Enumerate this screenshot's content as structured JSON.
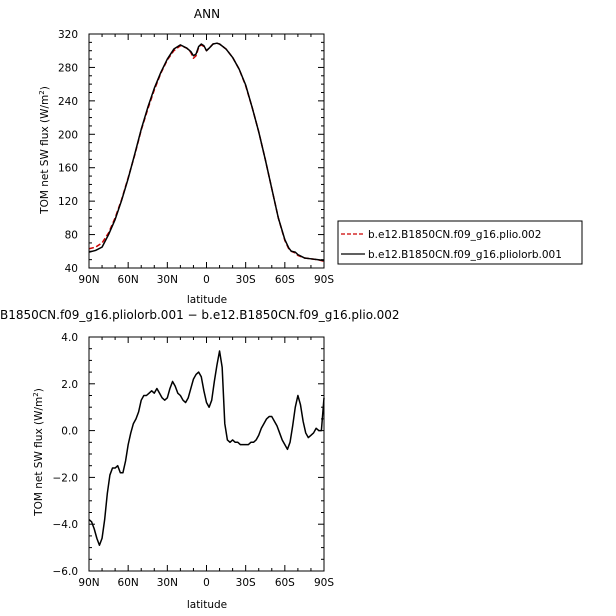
{
  "chart_data": [
    {
      "type": "line",
      "title": "ANN",
      "xlabel": "latitude",
      "ylabel": "TOM net SW flux (W/m²)",
      "xlim": [
        90,
        -90
      ],
      "ylim": [
        40,
        320
      ],
      "x_tick_values": [
        90,
        60,
        30,
        0,
        -30,
        -60,
        -90
      ],
      "x_tick_labels": [
        "90N",
        "60N",
        "30N",
        "0",
        "30S",
        "60S",
        "90S"
      ],
      "y_tick_values": [
        40,
        80,
        120,
        160,
        200,
        240,
        280,
        320
      ],
      "y_tick_labels": [
        "40",
        "80",
        "120",
        "160",
        "200",
        "240",
        "280",
        "320"
      ],
      "legend_position": "right",
      "series": [
        {
          "name": "b.e12.B1850CN.f09_g16.plio.002",
          "color": "#cc0000",
          "dash": "dashed",
          "x": [
            90,
            85,
            80,
            75,
            70,
            65,
            60,
            55,
            50,
            45,
            40,
            35,
            30,
            25,
            20,
            15,
            12,
            10,
            8,
            6,
            4,
            2,
            0,
            -2,
            -5,
            -8,
            -10,
            -15,
            -20,
            -25,
            -30,
            -35,
            -40,
            -45,
            -50,
            -55,
            -60,
            -63,
            -65,
            -68,
            -70,
            -75,
            -80,
            -85,
            -90
          ],
          "values": [
            63,
            65,
            70,
            82,
            100,
            122,
            148,
            175,
            205,
            230,
            253,
            273,
            289,
            300,
            306,
            303,
            298,
            291,
            294,
            304,
            307,
            305,
            300,
            303,
            308,
            309,
            308,
            302,
            292,
            278,
            258,
            232,
            203,
            170,
            135,
            100,
            73,
            63,
            60,
            58,
            55,
            52,
            51,
            50,
            48
          ]
        },
        {
          "name": "b.e12.B1850CN.f09_g16.pliolorb.001",
          "color": "#000000",
          "dash": "solid",
          "x": [
            90,
            85,
            80,
            75,
            70,
            65,
            60,
            55,
            50,
            45,
            40,
            35,
            30,
            25,
            20,
            15,
            12,
            10,
            8,
            6,
            4,
            2,
            0,
            -2,
            -5,
            -8,
            -10,
            -15,
            -20,
            -25,
            -30,
            -35,
            -40,
            -45,
            -50,
            -55,
            -60,
            -63,
            -65,
            -68,
            -70,
            -75,
            -80,
            -85,
            -90
          ],
          "values": [
            59,
            61,
            65,
            80,
            98,
            121,
            147,
            176,
            206,
            232,
            255,
            274,
            290,
            302,
            307,
            303,
            299,
            294,
            296,
            305,
            308,
            306,
            300,
            303,
            308,
            309,
            308,
            302,
            292,
            278,
            259,
            232,
            203,
            170,
            135,
            100,
            74,
            64,
            60,
            59,
            56,
            52,
            51,
            50,
            49
          ]
        }
      ]
    },
    {
      "type": "line",
      "title": "B1850CN.f09_g16.pliolorb.001 − b.e12.B1850CN.f09_g16.plio.002",
      "xlabel": "latitude",
      "ylabel": "TOM net SW flux (W/m²)",
      "xlim": [
        90,
        -90
      ],
      "ylim": [
        -6,
        4
      ],
      "x_tick_values": [
        90,
        60,
        30,
        0,
        -30,
        -60,
        -90
      ],
      "x_tick_labels": [
        "90N",
        "60N",
        "30N",
        "0",
        "30S",
        "60S",
        "90S"
      ],
      "y_tick_values": [
        -6,
        -4,
        -2,
        0,
        2,
        4
      ],
      "y_tick_labels": [
        "−6.0",
        "−4.0",
        "−2.0",
        "0.0",
        "2.0",
        "4.0"
      ],
      "series": [
        {
          "color": "#000000",
          "dash": "solid",
          "x": [
            90,
            88,
            86,
            84,
            82,
            80,
            78,
            76,
            74,
            72,
            70,
            68,
            66,
            64,
            62,
            60,
            58,
            56,
            54,
            52,
            50,
            48,
            46,
            44,
            42,
            40,
            38,
            36,
            34,
            32,
            30,
            28,
            26,
            24,
            22,
            20,
            18,
            16,
            14,
            12,
            10,
            8,
            6,
            4,
            2,
            0,
            -2,
            -4,
            -6,
            -8,
            -10,
            -12,
            -14,
            -16,
            -18,
            -20,
            -22,
            -24,
            -26,
            -28,
            -30,
            -32,
            -34,
            -36,
            -38,
            -40,
            -42,
            -44,
            -46,
            -48,
            -50,
            -52,
            -54,
            -56,
            -58,
            -60,
            -62,
            -64,
            -66,
            -68,
            -70,
            -72,
            -74,
            -76,
            -78,
            -80,
            -82,
            -84,
            -86,
            -88,
            -90
          ],
          "values": [
            -3.8,
            -3.9,
            -4.2,
            -4.6,
            -4.9,
            -4.6,
            -3.8,
            -2.7,
            -1.9,
            -1.6,
            -1.6,
            -1.5,
            -1.8,
            -1.8,
            -1.3,
            -0.6,
            -0.1,
            0.3,
            0.5,
            0.8,
            1.3,
            1.5,
            1.5,
            1.6,
            1.7,
            1.6,
            1.8,
            1.6,
            1.4,
            1.3,
            1.4,
            1.8,
            2.1,
            1.9,
            1.6,
            1.5,
            1.3,
            1.2,
            1.4,
            1.8,
            2.2,
            2.4,
            2.5,
            2.3,
            1.7,
            1.2,
            1.0,
            1.3,
            2.1,
            2.8,
            3.4,
            2.7,
            0.3,
            -0.4,
            -0.5,
            -0.4,
            -0.5,
            -0.5,
            -0.6,
            -0.6,
            -0.6,
            -0.6,
            -0.5,
            -0.5,
            -0.4,
            -0.2,
            0.1,
            0.3,
            0.5,
            0.6,
            0.6,
            0.4,
            0.2,
            -0.1,
            -0.4,
            -0.6,
            -0.8,
            -0.5,
            0.2,
            1.0,
            1.5,
            1.1,
            0.4,
            -0.1,
            -0.3,
            -0.2,
            -0.1,
            0.1,
            0.0,
            0.0,
            1.4
          ]
        }
      ]
    }
  ]
}
